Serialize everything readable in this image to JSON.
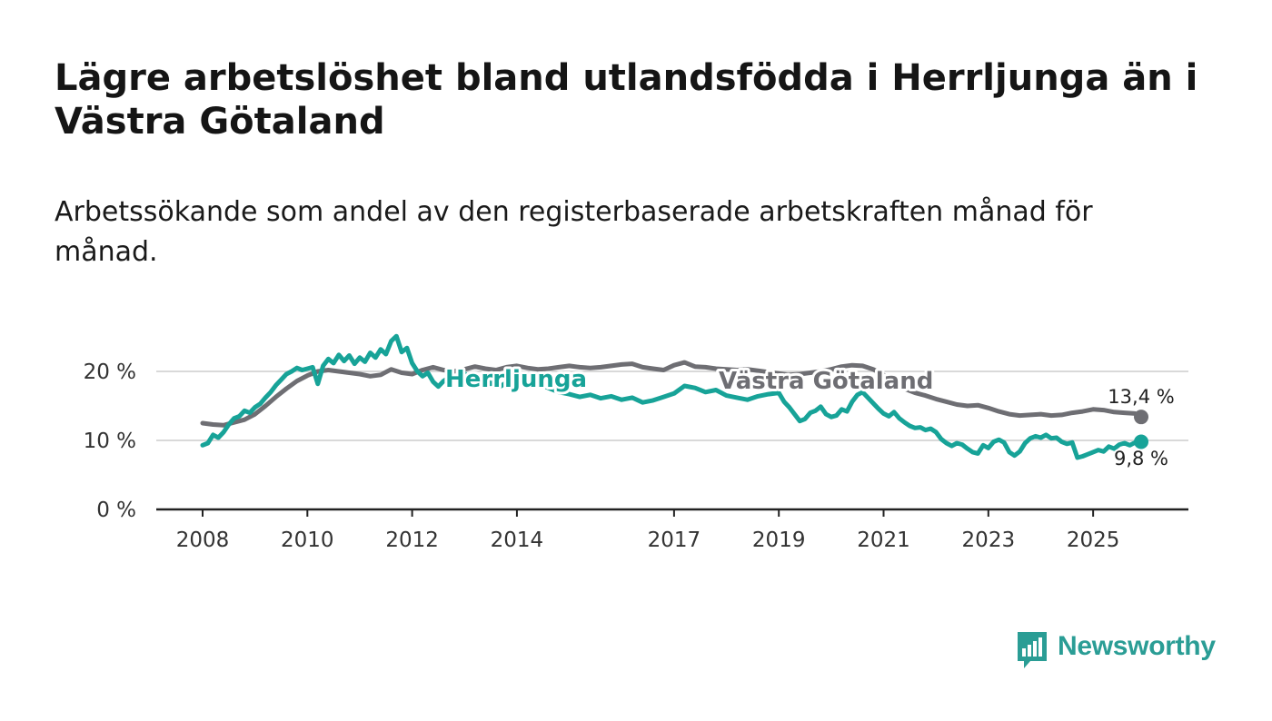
{
  "header": {
    "title": "Lägre arbetslöshet bland utlandsfödda i Herrljunga än i Västra Götaland",
    "subtitle": "Arbetssökande som andel av den registerbaserade arbetskraften månad för månad."
  },
  "brand": {
    "name": "Newsworthy"
  },
  "colors": {
    "herrljunga": "#17a398",
    "vastra": "#6e6e73",
    "grid": "#d9d9d9",
    "axis": "#222222"
  },
  "chart_data": {
    "type": "line",
    "title": "Lägre arbetslöshet bland utlandsfödda i Herrljunga än i Västra Götaland",
    "xlabel": "",
    "ylabel": "",
    "xlim": [
      2008.0,
      2025.917
    ],
    "ylim": [
      0,
      20
    ],
    "y_ticks": [
      0,
      10,
      20
    ],
    "y_tick_labels": [
      "0 %",
      "10 %",
      "20 %"
    ],
    "x_ticks": [
      2008,
      2010,
      2012,
      2014,
      2017,
      2019,
      2021,
      2023,
      2025
    ],
    "x_tick_labels": [
      "2008",
      "2010",
      "2012",
      "2014",
      "2017",
      "2019",
      "2021",
      "2023",
      "2025"
    ],
    "grid": true,
    "series": [
      {
        "name": "Västra Götaland",
        "color": "#6e6e73",
        "end_label": "13,4 %",
        "points": [
          [
            2008.0,
            12.5
          ],
          [
            2008.2,
            12.3
          ],
          [
            2008.4,
            12.2
          ],
          [
            2008.6,
            12.6
          ],
          [
            2008.8,
            13.0
          ],
          [
            2009.0,
            13.8
          ],
          [
            2009.2,
            15.0
          ],
          [
            2009.4,
            16.3
          ],
          [
            2009.6,
            17.5
          ],
          [
            2009.8,
            18.6
          ],
          [
            2010.0,
            19.4
          ],
          [
            2010.2,
            20.0
          ],
          [
            2010.4,
            20.2
          ],
          [
            2010.6,
            20.0
          ],
          [
            2010.8,
            19.8
          ],
          [
            2011.0,
            19.6
          ],
          [
            2011.2,
            19.3
          ],
          [
            2011.4,
            19.5
          ],
          [
            2011.6,
            20.3
          ],
          [
            2011.8,
            19.8
          ],
          [
            2012.0,
            19.6
          ],
          [
            2012.2,
            20.2
          ],
          [
            2012.4,
            20.6
          ],
          [
            2012.6,
            20.2
          ],
          [
            2012.8,
            20.0
          ],
          [
            2013.0,
            20.3
          ],
          [
            2013.2,
            20.7
          ],
          [
            2013.4,
            20.4
          ],
          [
            2013.6,
            20.2
          ],
          [
            2013.8,
            20.6
          ],
          [
            2014.0,
            20.8
          ],
          [
            2014.2,
            20.5
          ],
          [
            2014.4,
            20.3
          ],
          [
            2014.6,
            20.4
          ],
          [
            2014.8,
            20.6
          ],
          [
            2015.0,
            20.8
          ],
          [
            2015.2,
            20.6
          ],
          [
            2015.4,
            20.5
          ],
          [
            2015.6,
            20.6
          ],
          [
            2015.8,
            20.8
          ],
          [
            2016.0,
            21.0
          ],
          [
            2016.2,
            21.1
          ],
          [
            2016.4,
            20.6
          ],
          [
            2016.6,
            20.4
          ],
          [
            2016.8,
            20.2
          ],
          [
            2017.0,
            20.9
          ],
          [
            2017.2,
            21.3
          ],
          [
            2017.4,
            20.7
          ],
          [
            2017.6,
            20.6
          ],
          [
            2017.8,
            20.4
          ],
          [
            2018.0,
            20.3
          ],
          [
            2018.2,
            20.2
          ],
          [
            2018.4,
            20.3
          ],
          [
            2018.6,
            20.1
          ],
          [
            2018.8,
            19.9
          ],
          [
            2019.0,
            19.7
          ],
          [
            2019.2,
            19.5
          ],
          [
            2019.4,
            19.6
          ],
          [
            2019.6,
            19.8
          ],
          [
            2019.8,
            20.0
          ],
          [
            2020.0,
            20.3
          ],
          [
            2020.2,
            20.7
          ],
          [
            2020.4,
            20.9
          ],
          [
            2020.6,
            20.8
          ],
          [
            2020.8,
            20.3
          ],
          [
            2021.0,
            19.5
          ],
          [
            2021.2,
            18.3
          ],
          [
            2021.4,
            17.5
          ],
          [
            2021.6,
            16.9
          ],
          [
            2021.8,
            16.5
          ],
          [
            2022.0,
            16.0
          ],
          [
            2022.2,
            15.6
          ],
          [
            2022.4,
            15.2
          ],
          [
            2022.6,
            15.0
          ],
          [
            2022.8,
            15.1
          ],
          [
            2023.0,
            14.7
          ],
          [
            2023.2,
            14.2
          ],
          [
            2023.4,
            13.8
          ],
          [
            2023.6,
            13.6
          ],
          [
            2023.8,
            13.7
          ],
          [
            2024.0,
            13.8
          ],
          [
            2024.2,
            13.6
          ],
          [
            2024.4,
            13.7
          ],
          [
            2024.6,
            14.0
          ],
          [
            2024.8,
            14.2
          ],
          [
            2025.0,
            14.5
          ],
          [
            2025.2,
            14.4
          ],
          [
            2025.4,
            14.1
          ],
          [
            2025.6,
            14.0
          ],
          [
            2025.8,
            13.9
          ],
          [
            2025.917,
            13.4
          ]
        ]
      },
      {
        "name": "Herrljunga",
        "color": "#17a398",
        "end_label": "9,8 %",
        "points": [
          [
            2008.0,
            9.3
          ],
          [
            2008.1,
            9.6
          ],
          [
            2008.2,
            10.8
          ],
          [
            2008.3,
            10.4
          ],
          [
            2008.4,
            11.2
          ],
          [
            2008.5,
            12.3
          ],
          [
            2008.6,
            13.2
          ],
          [
            2008.7,
            13.5
          ],
          [
            2008.8,
            14.3
          ],
          [
            2008.9,
            14.0
          ],
          [
            2009.0,
            14.8
          ],
          [
            2009.1,
            15.3
          ],
          [
            2009.2,
            16.2
          ],
          [
            2009.3,
            17.0
          ],
          [
            2009.4,
            18.0
          ],
          [
            2009.5,
            18.8
          ],
          [
            2009.6,
            19.6
          ],
          [
            2009.7,
            20.0
          ],
          [
            2009.8,
            20.5
          ],
          [
            2009.9,
            20.2
          ],
          [
            2010.0,
            20.4
          ],
          [
            2010.1,
            20.6
          ],
          [
            2010.2,
            18.2
          ],
          [
            2010.3,
            20.8
          ],
          [
            2010.4,
            21.8
          ],
          [
            2010.5,
            21.2
          ],
          [
            2010.6,
            22.4
          ],
          [
            2010.7,
            21.5
          ],
          [
            2010.8,
            22.3
          ],
          [
            2010.9,
            21.1
          ],
          [
            2011.0,
            22.0
          ],
          [
            2011.1,
            21.4
          ],
          [
            2011.2,
            22.7
          ],
          [
            2011.3,
            22.0
          ],
          [
            2011.4,
            23.2
          ],
          [
            2011.5,
            22.5
          ],
          [
            2011.6,
            24.4
          ],
          [
            2011.7,
            25.1
          ],
          [
            2011.8,
            22.8
          ],
          [
            2011.9,
            23.4
          ],
          [
            2012.0,
            21.2
          ],
          [
            2012.1,
            20.0
          ],
          [
            2012.2,
            19.3
          ],
          [
            2012.3,
            19.8
          ],
          [
            2012.4,
            18.5
          ],
          [
            2012.5,
            17.8
          ],
          [
            2012.6,
            18.6
          ],
          [
            2012.7,
            19.1
          ],
          [
            2012.8,
            18.8
          ],
          [
            2012.9,
            19.6
          ],
          [
            2013.0,
            19.7
          ],
          [
            2013.1,
            18.7
          ],
          [
            2013.2,
            19.3
          ],
          [
            2013.3,
            18.4
          ],
          [
            2013.4,
            18.9
          ],
          [
            2013.5,
            18.2
          ],
          [
            2013.6,
            18.7
          ],
          [
            2013.7,
            17.9
          ],
          [
            2013.8,
            18.4
          ],
          [
            2013.9,
            17.8
          ],
          [
            2014.0,
            18.3
          ],
          [
            2014.2,
            18.8
          ],
          [
            2014.4,
            18.2
          ],
          [
            2014.6,
            17.6
          ],
          [
            2014.8,
            17.0
          ],
          [
            2015.0,
            16.7
          ],
          [
            2015.2,
            16.3
          ],
          [
            2015.4,
            16.6
          ],
          [
            2015.6,
            16.1
          ],
          [
            2015.8,
            16.4
          ],
          [
            2016.0,
            15.9
          ],
          [
            2016.2,
            16.2
          ],
          [
            2016.4,
            15.5
          ],
          [
            2016.6,
            15.8
          ],
          [
            2016.8,
            16.3
          ],
          [
            2017.0,
            16.8
          ],
          [
            2017.2,
            17.9
          ],
          [
            2017.4,
            17.6
          ],
          [
            2017.6,
            17.0
          ],
          [
            2017.8,
            17.3
          ],
          [
            2018.0,
            16.5
          ],
          [
            2018.2,
            16.2
          ],
          [
            2018.4,
            15.9
          ],
          [
            2018.6,
            16.4
          ],
          [
            2018.8,
            16.7
          ],
          [
            2019.0,
            16.9
          ],
          [
            2019.1,
            15.6
          ],
          [
            2019.2,
            14.8
          ],
          [
            2019.3,
            13.8
          ],
          [
            2019.4,
            12.8
          ],
          [
            2019.5,
            13.1
          ],
          [
            2019.6,
            14.0
          ],
          [
            2019.7,
            14.3
          ],
          [
            2019.8,
            14.9
          ],
          [
            2019.9,
            13.8
          ],
          [
            2020.0,
            13.4
          ],
          [
            2020.1,
            13.6
          ],
          [
            2020.2,
            14.5
          ],
          [
            2020.3,
            14.2
          ],
          [
            2020.4,
            15.6
          ],
          [
            2020.5,
            16.6
          ],
          [
            2020.6,
            17.0
          ],
          [
            2020.7,
            16.2
          ],
          [
            2020.8,
            15.4
          ],
          [
            2020.9,
            14.6
          ],
          [
            2021.0,
            13.9
          ],
          [
            2021.1,
            13.5
          ],
          [
            2021.2,
            14.1
          ],
          [
            2021.3,
            13.2
          ],
          [
            2021.4,
            12.6
          ],
          [
            2021.5,
            12.1
          ],
          [
            2021.6,
            11.8
          ],
          [
            2021.7,
            11.9
          ],
          [
            2021.8,
            11.5
          ],
          [
            2021.9,
            11.7
          ],
          [
            2022.0,
            11.2
          ],
          [
            2022.1,
            10.2
          ],
          [
            2022.2,
            9.6
          ],
          [
            2022.3,
            9.2
          ],
          [
            2022.4,
            9.6
          ],
          [
            2022.5,
            9.4
          ],
          [
            2022.6,
            8.8
          ],
          [
            2022.7,
            8.3
          ],
          [
            2022.8,
            8.1
          ],
          [
            2022.9,
            9.3
          ],
          [
            2023.0,
            8.9
          ],
          [
            2023.1,
            9.8
          ],
          [
            2023.2,
            10.1
          ],
          [
            2023.3,
            9.7
          ],
          [
            2023.4,
            8.3
          ],
          [
            2023.5,
            7.8
          ],
          [
            2023.6,
            8.4
          ],
          [
            2023.7,
            9.6
          ],
          [
            2023.8,
            10.3
          ],
          [
            2023.9,
            10.6
          ],
          [
            2024.0,
            10.4
          ],
          [
            2024.1,
            10.8
          ],
          [
            2024.2,
            10.3
          ],
          [
            2024.3,
            10.4
          ],
          [
            2024.4,
            9.8
          ],
          [
            2024.5,
            9.5
          ],
          [
            2024.6,
            9.7
          ],
          [
            2024.7,
            7.5
          ],
          [
            2024.8,
            7.7
          ],
          [
            2024.9,
            8.0
          ],
          [
            2025.0,
            8.3
          ],
          [
            2025.1,
            8.6
          ],
          [
            2025.2,
            8.4
          ],
          [
            2025.3,
            9.1
          ],
          [
            2025.4,
            8.8
          ],
          [
            2025.5,
            9.4
          ],
          [
            2025.6,
            9.6
          ],
          [
            2025.7,
            9.3
          ],
          [
            2025.8,
            9.7
          ],
          [
            2025.917,
            9.8
          ]
        ]
      }
    ]
  }
}
